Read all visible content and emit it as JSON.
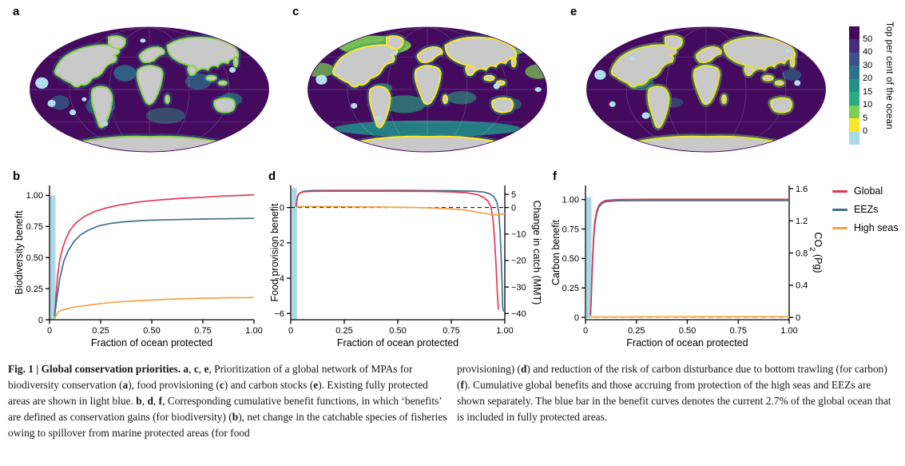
{
  "figure": {
    "panel_labels": {
      "a": "a",
      "b": "b",
      "c": "c",
      "d": "d",
      "e": "e",
      "f": "f"
    },
    "colors": {
      "mpa_bar": "#a9d8e8",
      "ocean": "#440a5e",
      "land": "#c9c9c9",
      "mpa_patch": "#b3deed"
    },
    "colorbar": {
      "title": "Top per cent of the ocean",
      "tick_labels": [
        "50",
        "40",
        "30",
        "20",
        "15",
        "10",
        "5",
        "0"
      ],
      "colors": [
        "#46085c",
        "#472d7b",
        "#3b528b",
        "#2c728e",
        "#21918c",
        "#27ad81",
        "#7ad151",
        "#fde725",
        "#a6dbea"
      ]
    },
    "legend": {
      "items": [
        {
          "label": "Global",
          "color": "#df3a56"
        },
        {
          "label": "EEZs",
          "color": "#3e7189"
        },
        {
          "label": "High seas",
          "color": "#f3a445"
        }
      ]
    },
    "caption": {
      "left_runs": [
        {
          "t": "Fig. 1 | Global conservation priorities. ",
          "b": true
        },
        {
          "t": "a",
          "b": true
        },
        {
          "t": ", "
        },
        {
          "t": "c",
          "b": true
        },
        {
          "t": ", "
        },
        {
          "t": "e",
          "b": true
        },
        {
          "t": ", Prioritization of a global network of MPAs for biodiversity conservation ("
        },
        {
          "t": "a",
          "b": true
        },
        {
          "t": "), food provisioning ("
        },
        {
          "t": "c",
          "b": true
        },
        {
          "t": ") and carbon stocks ("
        },
        {
          "t": "e",
          "b": true
        },
        {
          "t": "). Existing fully protected areas are shown in light blue. "
        },
        {
          "t": "b",
          "b": true
        },
        {
          "t": ", "
        },
        {
          "t": "d",
          "b": true
        },
        {
          "t": ", "
        },
        {
          "t": "f",
          "b": true
        },
        {
          "t": ", Corresponding cumulative benefit functions, in which ‘benefits’ are defined as conservation gains (for biodiversity) ("
        },
        {
          "t": "b",
          "b": true
        },
        {
          "t": "), net change in the catchable species of fisheries owing to spillover from marine protected areas (for food"
        }
      ],
      "right_runs": [
        {
          "t": "provisioning) ("
        },
        {
          "t": "d",
          "b": true
        },
        {
          "t": ") and reduction of the risk of carbon disturbance due to bottom trawling (for carbon) ("
        },
        {
          "t": "f",
          "b": true
        },
        {
          "t": "). Cumulative global benefits and those accruing from protection of the high seas and EEZs are shown separately. The blue bar in the benefit curves denotes the current 2.7% of the global ocean that is included in fully protected areas."
        }
      ]
    }
  },
  "chart_data": [
    {
      "id": "b",
      "type": "line",
      "title": "",
      "xlabel": "Fraction of ocean protected",
      "ylabel": "Biodiversity benefit",
      "xlim": [
        0,
        1.0
      ],
      "ylim": [
        0,
        1.08
      ],
      "xticks": [
        {
          "v": 0,
          "l": "0"
        },
        {
          "v": 0.25,
          "l": "0.25"
        },
        {
          "v": 0.5,
          "l": "0.50"
        },
        {
          "v": 0.75,
          "l": "0.75"
        },
        {
          "v": 1.0,
          "l": "1.00"
        }
      ],
      "yticks": [
        {
          "v": 1.0,
          "l": "1.00"
        },
        {
          "v": 0.75,
          "l": "0.75"
        },
        {
          "v": 0.5,
          "l": "0.50"
        },
        {
          "v": 0.25,
          "l": "0.25"
        },
        {
          "v": 0,
          "l": "0"
        }
      ],
      "protected_bar": {
        "x0": 0.004,
        "x1": 0.029,
        "y0": 0,
        "y1": 1.0
      },
      "series": [
        {
          "name": "Global",
          "color": "#df3a56",
          "points": [
            [
              0.025,
              0.03
            ],
            [
              0.032,
              0.2
            ],
            [
              0.04,
              0.36
            ],
            [
              0.05,
              0.48
            ],
            [
              0.065,
              0.58
            ],
            [
              0.08,
              0.65
            ],
            [
              0.1,
              0.72
            ],
            [
              0.13,
              0.78
            ],
            [
              0.17,
              0.83
            ],
            [
              0.22,
              0.87
            ],
            [
              0.28,
              0.9
            ],
            [
              0.35,
              0.925
            ],
            [
              0.45,
              0.95
            ],
            [
              0.55,
              0.965
            ],
            [
              0.65,
              0.977
            ],
            [
              0.75,
              0.985
            ],
            [
              0.85,
              0.995
            ],
            [
              0.95,
              1.0
            ],
            [
              1.0,
              1.005
            ]
          ]
        },
        {
          "name": "EEZs",
          "color": "#3e7189",
          "points": [
            [
              0.025,
              0.03
            ],
            [
              0.035,
              0.16
            ],
            [
              0.05,
              0.33
            ],
            [
              0.07,
              0.47
            ],
            [
              0.09,
              0.55
            ],
            [
              0.12,
              0.63
            ],
            [
              0.15,
              0.68
            ],
            [
              0.19,
              0.72
            ],
            [
              0.24,
              0.755
            ],
            [
              0.3,
              0.775
            ],
            [
              0.38,
              0.79
            ],
            [
              0.48,
              0.8
            ],
            [
              0.6,
              0.805
            ],
            [
              0.75,
              0.81
            ],
            [
              1.0,
              0.815
            ]
          ]
        },
        {
          "name": "High seas",
          "color": "#f3a445",
          "points": [
            [
              0.025,
              0.01
            ],
            [
              0.04,
              0.06
            ],
            [
              0.06,
              0.078
            ],
            [
              0.09,
              0.09
            ],
            [
              0.13,
              0.105
            ],
            [
              0.18,
              0.115
            ],
            [
              0.25,
              0.13
            ],
            [
              0.33,
              0.143
            ],
            [
              0.42,
              0.152
            ],
            [
              0.52,
              0.16
            ],
            [
              0.63,
              0.168
            ],
            [
              0.75,
              0.173
            ],
            [
              0.88,
              0.177
            ],
            [
              1.0,
              0.178
            ]
          ]
        }
      ]
    },
    {
      "id": "d",
      "type": "line",
      "title": "",
      "xlabel": "Fraction of ocean protected",
      "ylabel": "Food provision benefit",
      "xlim": [
        0,
        1.0
      ],
      "ylim": [
        -6.35,
        1.25
      ],
      "xticks": [
        {
          "v": 0,
          "l": "0"
        },
        {
          "v": 0.25,
          "l": "0.25"
        },
        {
          "v": 0.5,
          "l": "0.50"
        },
        {
          "v": 0.75,
          "l": "0.75"
        },
        {
          "v": 1.0,
          "l": "1.00"
        }
      ],
      "yticks": [
        {
          "v": 0,
          "l": "0"
        },
        {
          "v": -2,
          "l": "−2"
        },
        {
          "v": -4,
          "l": "−4"
        },
        {
          "v": -6,
          "l": "−6"
        }
      ],
      "right_axis": {
        "label_runs": [
          {
            "t": "Change in catch (MMT)"
          }
        ],
        "ticks": [
          {
            "v": 5,
            "l": "5"
          },
          {
            "v": 0,
            "l": "0"
          },
          {
            "v": -10,
            "l": "−10"
          },
          {
            "v": -20,
            "l": "−20"
          },
          {
            "v": -30,
            "l": "−30"
          },
          {
            "v": -40,
            "l": "−40"
          }
        ],
        "scale_to_left": 0.15
      },
      "zero_line": {
        "color": "#000000",
        "dash": "5,4"
      },
      "protected_bar": {
        "x0": 0.004,
        "x1": 0.029,
        "y0": -6.35,
        "y1": 1.1
      },
      "series": [
        {
          "name": "EEZs",
          "color": "#3e7189",
          "points": [
            [
              0.025,
              0.05
            ],
            [
              0.03,
              0.55
            ],
            [
              0.04,
              0.8
            ],
            [
              0.06,
              0.92
            ],
            [
              0.1,
              0.96
            ],
            [
              0.2,
              0.97
            ],
            [
              0.4,
              0.97
            ],
            [
              0.6,
              0.965
            ],
            [
              0.75,
              0.95
            ],
            [
              0.85,
              0.93
            ],
            [
              0.9,
              0.88
            ],
            [
              0.93,
              0.78
            ],
            [
              0.95,
              0.6
            ],
            [
              0.963,
              0.3
            ],
            [
              0.972,
              -0.3
            ],
            [
              0.978,
              -1.4
            ],
            [
              0.983,
              -2.8
            ],
            [
              0.987,
              -4.2
            ],
            [
              0.99,
              -5.6
            ],
            [
              0.993,
              -5.85
            ],
            [
              1.0,
              -5.85
            ]
          ]
        },
        {
          "name": "Global",
          "color": "#df3a56",
          "points": [
            [
              0.025,
              0.05
            ],
            [
              0.03,
              0.5
            ],
            [
              0.035,
              0.72
            ],
            [
              0.045,
              0.84
            ],
            [
              0.06,
              0.89
            ],
            [
              0.1,
              0.92
            ],
            [
              0.2,
              0.93
            ],
            [
              0.35,
              0.93
            ],
            [
              0.5,
              0.925
            ],
            [
              0.65,
              0.915
            ],
            [
              0.75,
              0.89
            ],
            [
              0.82,
              0.84
            ],
            [
              0.87,
              0.74
            ],
            [
              0.9,
              0.58
            ],
            [
              0.92,
              0.38
            ],
            [
              0.935,
              0.05
            ],
            [
              0.945,
              -0.7
            ],
            [
              0.952,
              -1.8
            ],
            [
              0.958,
              -3.0
            ],
            [
              0.963,
              -4.3
            ],
            [
              0.967,
              -5.3
            ],
            [
              0.97,
              -5.75
            ]
          ]
        },
        {
          "name": "High seas",
          "color": "#f3a445",
          "points": [
            [
              0.025,
              0.03
            ],
            [
              0.06,
              0.06
            ],
            [
              0.12,
              0.06
            ],
            [
              0.25,
              0.05
            ],
            [
              0.4,
              0.03
            ],
            [
              0.55,
              0.01
            ],
            [
              0.65,
              -0.02
            ],
            [
              0.75,
              -0.08
            ],
            [
              0.82,
              -0.15
            ],
            [
              0.88,
              -0.28
            ],
            [
              0.93,
              -0.38
            ],
            [
              0.96,
              -0.42
            ],
            [
              0.98,
              -0.38
            ],
            [
              1.0,
              -0.35
            ]
          ]
        }
      ]
    },
    {
      "id": "f",
      "type": "line",
      "title": "",
      "xlabel": "Fraction of ocean protected",
      "ylabel": "Carbon benefit",
      "xlim": [
        0,
        1.0
      ],
      "ylim": [
        -0.02,
        1.12
      ],
      "xticks": [
        {
          "v": 0,
          "l": "0"
        },
        {
          "v": 0.25,
          "l": "0.25"
        },
        {
          "v": 0.5,
          "l": "0.50"
        },
        {
          "v": 0.75,
          "l": "0.75"
        },
        {
          "v": 1.0,
          "l": "1.00"
        }
      ],
      "yticks": [
        {
          "v": 1.0,
          "l": "1.00"
        },
        {
          "v": 0.75,
          "l": "0.75"
        },
        {
          "v": 0.5,
          "l": "0.50"
        },
        {
          "v": 0.25,
          "l": "0.25"
        },
        {
          "v": 0,
          "l": "0"
        }
      ],
      "right_axis": {
        "label_runs": [
          {
            "t": "CO"
          },
          {
            "t": "2",
            "sub": true
          },
          {
            "t": " (Pg)"
          }
        ],
        "ticks": [
          {
            "v": 1.6,
            "l": "1.6"
          },
          {
            "v": 1.2,
            "l": "1.2"
          },
          {
            "v": 0.8,
            "l": "0.8"
          },
          {
            "v": 0.4,
            "l": "0.4"
          },
          {
            "v": 0,
            "l": "0"
          }
        ],
        "scale_to_left": 0.683
      },
      "zero_line": {
        "color": "#aaaaaa",
        "dash": "6,5"
      },
      "protected_bar": {
        "x0": 0.004,
        "x1": 0.029,
        "y0": 0,
        "y1": 1.02
      },
      "series": [
        {
          "name": "EEZs",
          "color": "#3e7189",
          "points": [
            [
              0.025,
              0.02
            ],
            [
              0.03,
              0.24
            ],
            [
              0.035,
              0.48
            ],
            [
              0.04,
              0.66
            ],
            [
              0.045,
              0.78
            ],
            [
              0.055,
              0.88
            ],
            [
              0.065,
              0.935
            ],
            [
              0.08,
              0.966
            ],
            [
              0.1,
              0.982
            ],
            [
              0.15,
              0.99
            ],
            [
              0.3,
              0.992
            ],
            [
              1.0,
              0.992
            ]
          ]
        },
        {
          "name": "Global",
          "color": "#df3a56",
          "points": [
            [
              0.025,
              0.03
            ],
            [
              0.03,
              0.26
            ],
            [
              0.035,
              0.51
            ],
            [
              0.04,
              0.69
            ],
            [
              0.045,
              0.81
            ],
            [
              0.055,
              0.9
            ],
            [
              0.065,
              0.95
            ],
            [
              0.08,
              0.978
            ],
            [
              0.1,
              0.993
            ],
            [
              0.15,
              1.0
            ],
            [
              0.3,
              1.002
            ],
            [
              1.0,
              1.002
            ]
          ]
        },
        {
          "name": "High seas",
          "color": "#f3a445",
          "points": [
            [
              0.025,
              0.004
            ],
            [
              0.3,
              0.005
            ],
            [
              1.0,
              0.006
            ]
          ]
        }
      ]
    }
  ]
}
